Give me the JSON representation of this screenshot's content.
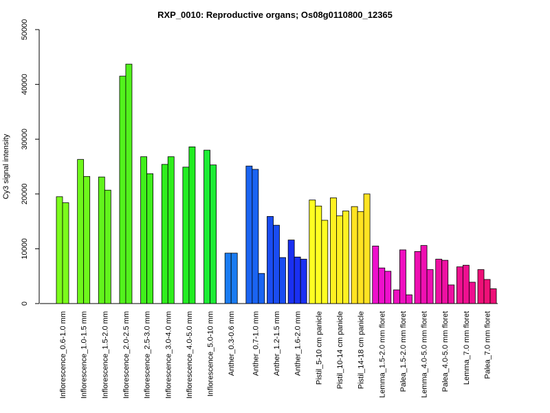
{
  "chart_data": {
    "type": "bar",
    "title": "RXP_0010: Reproductive organs; Os08g0110800_12365",
    "ylabel": "Cy3 signal intensity",
    "xlabel": "",
    "ylim": [
      0,
      50000
    ],
    "yticks": [
      0,
      10000,
      20000,
      30000,
      40000,
      50000
    ],
    "grid": false,
    "groups": [
      {
        "label": "Inflorescence_0.6-1.0 mm",
        "color": "#7cfc1c",
        "values": [
          19500,
          18400
        ]
      },
      {
        "label": "Inflorescence_1.0-1.5 mm",
        "color": "#6ff71c",
        "values": [
          26300,
          23200
        ]
      },
      {
        "label": "Inflorescence_1.5-2.0 mm",
        "color": "#62f41c",
        "values": [
          23100,
          20700
        ]
      },
      {
        "label": "Inflorescence_2.0-2.5 mm",
        "color": "#52f21c",
        "values": [
          41500,
          43700
        ]
      },
      {
        "label": "Inflorescence_2.5-3.0 mm",
        "color": "#40f01c",
        "values": [
          26800,
          23700
        ]
      },
      {
        "label": "Inflorescence_3.0-4.0 mm",
        "color": "#30ef1c",
        "values": [
          25400,
          26800
        ]
      },
      {
        "label": "Inflorescence_4.0-5.0 mm",
        "color": "#22ee22",
        "values": [
          24900,
          28600
        ]
      },
      {
        "label": "Inflorescence_5.0-10 mm",
        "color": "#1cec34",
        "values": [
          28000,
          25300
        ]
      },
      {
        "label": "Anther_0.3-0.6 mm",
        "color": "#1a7cf2",
        "values": [
          9200,
          9200
        ]
      },
      {
        "label": "Anther_0.7-1.0 mm",
        "color": "#1a64f2",
        "values": [
          25100,
          24500,
          5500
        ]
      },
      {
        "label": "Anther_1.2-1.5 mm",
        "color": "#1a4cf2",
        "values": [
          15900,
          14300,
          8400
        ]
      },
      {
        "label": "Anther_1.6-2.0 mm",
        "color": "#1a30f2",
        "values": [
          11600,
          8500,
          8100
        ]
      },
      {
        "label": "Pistil_5-10 cm panicle",
        "color": "#ffff22",
        "values": [
          18900,
          17800,
          15200
        ]
      },
      {
        "label": "Pistil_10-14 cm panicle",
        "color": "#fff122",
        "values": [
          19300,
          16000,
          16900
        ]
      },
      {
        "label": "Pistil_14-18 cm panicle",
        "color": "#ffe322",
        "values": [
          17700,
          16800,
          20000
        ]
      },
      {
        "label": "Lemma_1.5-2.0 mm floret",
        "color": "#ee10cc",
        "values": [
          10500,
          6500,
          5900
        ]
      },
      {
        "label": "Palea_1.5-2.0 mm floret",
        "color": "#ee10c0",
        "values": [
          2500,
          9800,
          1600
        ]
      },
      {
        "label": "Lemma_4.0-5.0 mm floret",
        "color": "#ee10b2",
        "values": [
          9500,
          10600,
          6200
        ]
      },
      {
        "label": "Palea_4.0-5.0 mm floret",
        "color": "#ee10a2",
        "values": [
          8100,
          7900,
          3400
        ]
      },
      {
        "label": "Lemma_7.0 mm floret",
        "color": "#ee1090",
        "values": [
          6700,
          7000,
          3900
        ]
      },
      {
        "label": "Palea_7.0 mm floret",
        "color": "#ee1078",
        "values": [
          6200,
          4400,
          2700
        ]
      }
    ]
  }
}
